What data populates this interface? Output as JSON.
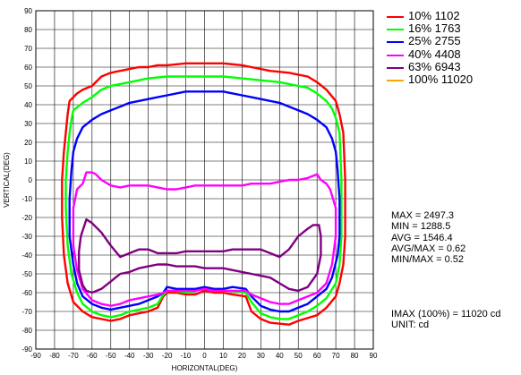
{
  "chart_data": {
    "type": "line",
    "xlabel": "HORIZONTAL(DEG)",
    "ylabel": "VERTICAL(DEG)",
    "xlim": [
      -90,
      90
    ],
    "ylim": [
      -90,
      90
    ],
    "xticks": [
      -90,
      -80,
      -70,
      -60,
      -50,
      -40,
      -30,
      -20,
      -10,
      0,
      10,
      20,
      30,
      40,
      50,
      60,
      70,
      80,
      90
    ],
    "yticks": [
      -90,
      -80,
      -70,
      -60,
      -50,
      -40,
      -30,
      -20,
      -10,
      0,
      10,
      20,
      30,
      40,
      50,
      60,
      70,
      80,
      90
    ],
    "grid": true,
    "legend_position": "right",
    "series": [
      {
        "name": "10% 1102",
        "color": "#ff0000",
        "points": [
          [
            0,
            62
          ],
          [
            10,
            62
          ],
          [
            20,
            61
          ],
          [
            25,
            60
          ],
          [
            35,
            58
          ],
          [
            45,
            57
          ],
          [
            50,
            56
          ],
          [
            55,
            55
          ],
          [
            60,
            52
          ],
          [
            65,
            48
          ],
          [
            70,
            42
          ],
          [
            72,
            35
          ],
          [
            74,
            25
          ],
          [
            75,
            0
          ],
          [
            75,
            -30
          ],
          [
            74,
            -45
          ],
          [
            72,
            -55
          ],
          [
            70,
            -62
          ],
          [
            65,
            -68
          ],
          [
            60,
            -72
          ],
          [
            50,
            -75
          ],
          [
            45,
            -77
          ],
          [
            35,
            -76
          ],
          [
            30,
            -74
          ],
          [
            25,
            -70
          ],
          [
            22,
            -62
          ],
          [
            15,
            -61
          ],
          [
            10,
            -60
          ],
          [
            5,
            -60
          ],
          [
            0,
            -59
          ],
          [
            -5,
            -61
          ],
          [
            -10,
            -61
          ],
          [
            -15,
            -60
          ],
          [
            -20,
            -60
          ],
          [
            -22,
            -62
          ],
          [
            -25,
            -68
          ],
          [
            -30,
            -70
          ],
          [
            -40,
            -72
          ],
          [
            -45,
            -74
          ],
          [
            -50,
            -75
          ],
          [
            -60,
            -73
          ],
          [
            -65,
            -70
          ],
          [
            -70,
            -65
          ],
          [
            -73,
            -55
          ],
          [
            -75,
            -40
          ],
          [
            -76,
            -20
          ],
          [
            -76,
            0
          ],
          [
            -75,
            15
          ],
          [
            -74,
            25
          ],
          [
            -73,
            35
          ],
          [
            -72,
            42
          ],
          [
            -68,
            46
          ],
          [
            -65,
            48
          ],
          [
            -60,
            50
          ],
          [
            -55,
            55
          ],
          [
            -50,
            57
          ],
          [
            -45,
            58
          ],
          [
            -40,
            59
          ],
          [
            -35,
            60
          ],
          [
            -30,
            60
          ],
          [
            -25,
            61
          ],
          [
            -20,
            61
          ],
          [
            -10,
            62
          ],
          [
            0,
            62
          ]
        ]
      },
      {
        "name": "16% 1763",
        "color": "#00ff00",
        "points": [
          [
            0,
            55
          ],
          [
            10,
            55
          ],
          [
            20,
            54
          ],
          [
            30,
            53
          ],
          [
            40,
            52
          ],
          [
            45,
            51
          ],
          [
            50,
            50
          ],
          [
            55,
            49
          ],
          [
            60,
            46
          ],
          [
            65,
            42
          ],
          [
            68,
            38
          ],
          [
            70,
            33
          ],
          [
            72,
            25
          ],
          [
            73,
            0
          ],
          [
            73,
            -30
          ],
          [
            72,
            -45
          ],
          [
            70,
            -55
          ],
          [
            65,
            -63
          ],
          [
            60,
            -67
          ],
          [
            55,
            -70
          ],
          [
            50,
            -72
          ],
          [
            45,
            -74
          ],
          [
            40,
            -74
          ],
          [
            35,
            -73
          ],
          [
            30,
            -71
          ],
          [
            25,
            -65
          ],
          [
            22,
            -60
          ],
          [
            15,
            -59
          ],
          [
            10,
            -59
          ],
          [
            5,
            -58
          ],
          [
            0,
            -58
          ],
          [
            -5,
            -59
          ],
          [
            -10,
            -60
          ],
          [
            -15,
            -59
          ],
          [
            -20,
            -59
          ],
          [
            -22,
            -61
          ],
          [
            -25,
            -66
          ],
          [
            -30,
            -68
          ],
          [
            -40,
            -70
          ],
          [
            -45,
            -72
          ],
          [
            -50,
            -73
          ],
          [
            -55,
            -72
          ],
          [
            -60,
            -70
          ],
          [
            -65,
            -66
          ],
          [
            -68,
            -60
          ],
          [
            -71,
            -50
          ],
          [
            -73,
            -35
          ],
          [
            -74,
            -15
          ],
          [
            -74,
            0
          ],
          [
            -73,
            15
          ],
          [
            -72,
            25
          ],
          [
            -71,
            32
          ],
          [
            -70,
            37
          ],
          [
            -65,
            41
          ],
          [
            -60,
            44
          ],
          [
            -55,
            48
          ],
          [
            -50,
            50
          ],
          [
            -45,
            51
          ],
          [
            -40,
            52
          ],
          [
            -35,
            53
          ],
          [
            -30,
            54
          ],
          [
            -20,
            55
          ],
          [
            -10,
            55
          ],
          [
            0,
            55
          ]
        ]
      },
      {
        "name": "25% 2755",
        "color": "#0000ff",
        "points": [
          [
            0,
            47
          ],
          [
            10,
            47
          ],
          [
            20,
            45
          ],
          [
            25,
            44
          ],
          [
            30,
            43
          ],
          [
            40,
            41
          ],
          [
            45,
            39
          ],
          [
            50,
            37
          ],
          [
            55,
            35
          ],
          [
            60,
            32
          ],
          [
            65,
            28
          ],
          [
            68,
            22
          ],
          [
            70,
            15
          ],
          [
            71,
            5
          ],
          [
            72,
            -10
          ],
          [
            72,
            -30
          ],
          [
            71,
            -40
          ],
          [
            68,
            -52
          ],
          [
            65,
            -58
          ],
          [
            60,
            -62
          ],
          [
            55,
            -66
          ],
          [
            50,
            -68
          ],
          [
            45,
            -70
          ],
          [
            40,
            -70
          ],
          [
            35,
            -69
          ],
          [
            30,
            -67
          ],
          [
            25,
            -62
          ],
          [
            22,
            -58
          ],
          [
            15,
            -57
          ],
          [
            10,
            -58
          ],
          [
            5,
            -58
          ],
          [
            0,
            -57
          ],
          [
            -5,
            -58
          ],
          [
            -10,
            -58
          ],
          [
            -15,
            -58
          ],
          [
            -20,
            -57
          ],
          [
            -22,
            -60
          ],
          [
            -25,
            -62
          ],
          [
            -30,
            -64
          ],
          [
            -35,
            -66
          ],
          [
            -45,
            -68
          ],
          [
            -50,
            -69
          ],
          [
            -55,
            -68
          ],
          [
            -60,
            -66
          ],
          [
            -65,
            -62
          ],
          [
            -68,
            -55
          ],
          [
            -70,
            -45
          ],
          [
            -72,
            -30
          ],
          [
            -72,
            -10
          ],
          [
            -71,
            5
          ],
          [
            -70,
            15
          ],
          [
            -68,
            22
          ],
          [
            -65,
            28
          ],
          [
            -60,
            32
          ],
          [
            -55,
            35
          ],
          [
            -50,
            37
          ],
          [
            -45,
            39
          ],
          [
            -40,
            41
          ],
          [
            -30,
            43
          ],
          [
            -25,
            44
          ],
          [
            -20,
            45
          ],
          [
            -10,
            47
          ],
          [
            0,
            47
          ]
        ]
      },
      {
        "name": "40% 4408",
        "color": "#ff00ff",
        "points": [
          [
            -65,
            -2
          ],
          [
            -63,
            4
          ],
          [
            -60,
            4
          ],
          [
            -58,
            3
          ],
          [
            -55,
            0
          ],
          [
            -50,
            -3
          ],
          [
            -45,
            -4
          ],
          [
            -40,
            -3
          ],
          [
            -35,
            -3
          ],
          [
            -30,
            -3
          ],
          [
            -25,
            -4
          ],
          [
            -20,
            -5
          ],
          [
            -15,
            -5
          ],
          [
            -10,
            -4
          ],
          [
            -5,
            -3
          ],
          [
            0,
            -3
          ],
          [
            5,
            -3
          ],
          [
            10,
            -3
          ],
          [
            15,
            -3
          ],
          [
            20,
            -3
          ],
          [
            25,
            -2
          ],
          [
            30,
            -2
          ],
          [
            35,
            -2
          ],
          [
            40,
            -1
          ],
          [
            45,
            0
          ],
          [
            50,
            0
          ],
          [
            55,
            1
          ],
          [
            60,
            3
          ],
          [
            62,
            0
          ],
          [
            65,
            -2
          ],
          [
            67,
            -5
          ],
          [
            70,
            -15
          ],
          [
            70,
            -30
          ],
          [
            68,
            -45
          ],
          [
            65,
            -55
          ],
          [
            60,
            -60
          ],
          [
            55,
            -62
          ],
          [
            50,
            -64
          ],
          [
            45,
            -66
          ],
          [
            40,
            -66
          ],
          [
            35,
            -65
          ],
          [
            30,
            -63
          ],
          [
            25,
            -61
          ],
          [
            22,
            -59
          ],
          [
            15,
            -59
          ],
          [
            10,
            -59
          ],
          [
            5,
            -59
          ],
          [
            0,
            -58
          ],
          [
            -5,
            -59
          ],
          [
            -10,
            -59
          ],
          [
            -15,
            -59
          ],
          [
            -20,
            -59
          ],
          [
            -22,
            -60
          ],
          [
            -25,
            -61
          ],
          [
            -30,
            -62
          ],
          [
            -35,
            -63
          ],
          [
            -40,
            -64
          ],
          [
            -45,
            -66
          ],
          [
            -50,
            -67
          ],
          [
            -55,
            -66
          ],
          [
            -60,
            -64
          ],
          [
            -65,
            -58
          ],
          [
            -68,
            -48
          ],
          [
            -70,
            -35
          ],
          [
            -70,
            -15
          ],
          [
            -68,
            -5
          ],
          [
            -66,
            -3
          ],
          [
            -65,
            -2
          ]
        ]
      },
      {
        "name": "63% 6943",
        "color": "#800080",
        "points": [
          [
            -63,
            -21
          ],
          [
            -60,
            -23
          ],
          [
            -55,
            -28
          ],
          [
            -50,
            -35
          ],
          [
            -45,
            -41
          ],
          [
            -40,
            -39
          ],
          [
            -35,
            -37
          ],
          [
            -30,
            -37
          ],
          [
            -25,
            -39
          ],
          [
            -20,
            -39
          ],
          [
            -15,
            -39
          ],
          [
            -10,
            -38
          ],
          [
            -5,
            -38
          ],
          [
            0,
            -38
          ],
          [
            5,
            -38
          ],
          [
            10,
            -38
          ],
          [
            15,
            -37
          ],
          [
            20,
            -37
          ],
          [
            25,
            -37
          ],
          [
            30,
            -37
          ],
          [
            35,
            -39
          ],
          [
            40,
            -41
          ],
          [
            45,
            -37
          ],
          [
            50,
            -30
          ],
          [
            55,
            -26
          ],
          [
            58,
            -24
          ],
          [
            60,
            -24
          ],
          [
            61,
            -24
          ],
          [
            62,
            -30
          ],
          [
            62,
            -40
          ],
          [
            60,
            -50
          ],
          [
            55,
            -57
          ],
          [
            50,
            -59
          ],
          [
            45,
            -58
          ],
          [
            40,
            -55
          ],
          [
            35,
            -52
          ],
          [
            30,
            -51
          ],
          [
            25,
            -50
          ],
          [
            20,
            -49
          ],
          [
            15,
            -48
          ],
          [
            10,
            -47
          ],
          [
            5,
            -47
          ],
          [
            0,
            -47
          ],
          [
            -5,
            -46
          ],
          [
            -10,
            -46
          ],
          [
            -15,
            -46
          ],
          [
            -20,
            -45
          ],
          [
            -25,
            -45
          ],
          [
            -30,
            -46
          ],
          [
            -35,
            -47
          ],
          [
            -40,
            -49
          ],
          [
            -45,
            -50
          ],
          [
            -50,
            -54
          ],
          [
            -55,
            -58
          ],
          [
            -60,
            -60
          ],
          [
            -63,
            -59
          ],
          [
            -65,
            -56
          ],
          [
            -67,
            -48
          ],
          [
            -67,
            -38
          ],
          [
            -66,
            -30
          ],
          [
            -63,
            -21
          ]
        ]
      },
      {
        "name": "100% 11020",
        "color": "#ffa500",
        "points": []
      }
    ],
    "stats": [
      "MAX = 2497.3",
      "MIN = 1288.5",
      "AVG = 1546.4",
      "AVG/MAX = 0.62",
      "MIN/MAX = 0.52"
    ],
    "imax": "IMAX (100%) = 11020 cd",
    "unit": "UNIT: cd"
  }
}
